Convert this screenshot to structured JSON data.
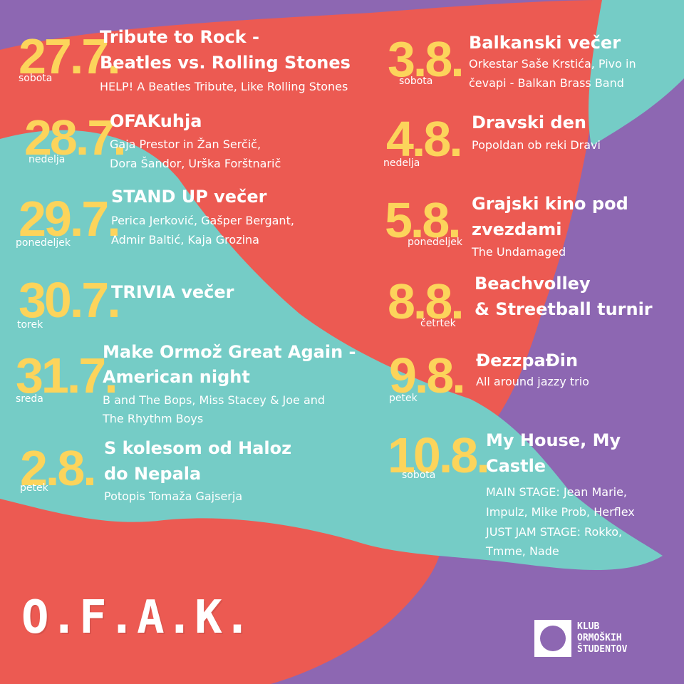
{
  "colors": {
    "purple": "#8d67b2",
    "red": "#ec5a52",
    "teal": "#75ccc6",
    "yellow": "#fcd45b",
    "white": "#ffffff"
  },
  "events": [
    {
      "date": "27.7.",
      "day": "sobota",
      "title1": "Tribute to Rock -",
      "title2": "Beatles vs. Rolling Stones",
      "sub1": "HELP! A Beatles Tribute, Like Rolling Stones",
      "sub2": "",
      "sub3": "",
      "sub4": ""
    },
    {
      "date": "28.7.",
      "day": "nedelja",
      "title1": "OFAKuhja",
      "title2": "",
      "sub1": "Gaja Prestor in Žan Serčič,",
      "sub2": "Dora Šandor, Urška Forštnarič",
      "sub3": "",
      "sub4": ""
    },
    {
      "date": "29.7.",
      "day": "ponedeljek",
      "title1": "STAND UP večer",
      "title2": "",
      "sub1": "Perica Jerković, Gašper Bergant,",
      "sub2": "Admir Baltić, Kaja Grozina",
      "sub3": "",
      "sub4": ""
    },
    {
      "date": "30.7.",
      "day": "torek",
      "title1": "TRIVIA večer",
      "title2": "",
      "sub1": "",
      "sub2": "",
      "sub3": "",
      "sub4": ""
    },
    {
      "date": "31.7.",
      "day": "sreda",
      "title1": "Make Ormož Great Again -",
      "title2": "American night",
      "sub1": "B and The Bops, Miss Stacey & Joe and",
      "sub2": "The Rhythm Boys",
      "sub3": "",
      "sub4": ""
    },
    {
      "date": "2.8.",
      "day": "petek",
      "title1": "S kolesom od Haloz",
      "title2": "do Nepala",
      "sub1": "Potopis Tomaža Gajserja",
      "sub2": "",
      "sub3": "",
      "sub4": ""
    },
    {
      "date": "3.8.",
      "day": "sobota",
      "title1": "Balkanski večer",
      "title2": "",
      "sub1": "Orkestar Saše Krstića, Pivo in",
      "sub2": "čevapi - Balkan Brass Band",
      "sub3": "",
      "sub4": ""
    },
    {
      "date": "4.8.",
      "day": "nedelja",
      "title1": "Dravski den",
      "title2": "",
      "sub1": "Popoldan ob reki Dravi",
      "sub2": "",
      "sub3": "",
      "sub4": ""
    },
    {
      "date": "5.8.",
      "day": "ponedeljek",
      "title1": "Grajski kino pod",
      "title2": "zvezdami",
      "sub1": "The Undamaged",
      "sub2": "",
      "sub3": "",
      "sub4": ""
    },
    {
      "date": "8.8.",
      "day": "četrtek",
      "title1": "Beachvolley",
      "title2": "& Streetball turnir",
      "sub1": "",
      "sub2": "",
      "sub3": "",
      "sub4": ""
    },
    {
      "date": "9.8.",
      "day": "petek",
      "title1": "ĐezzpaĐin",
      "title2": "",
      "sub1": "All around jazzy trio",
      "sub2": "",
      "sub3": "",
      "sub4": ""
    },
    {
      "date": "10.8.",
      "day": "sobota",
      "title1": "My House, My",
      "title2": "Castle",
      "sub1": "MAIN STAGE: Jean Marie,",
      "sub2": "Impulz, Mike Prob, Herflex",
      "sub3": "JUST JAM STAGE: Rokko,",
      "sub4": "Tmme, Nade"
    }
  ],
  "logo": {
    "text": "O.F.A.K."
  },
  "club": {
    "line1": "KLUB",
    "line2": "ORMOŠKIH",
    "line3": "ŠTUDENTOV",
    "icon": "circle-in-square-icon"
  }
}
